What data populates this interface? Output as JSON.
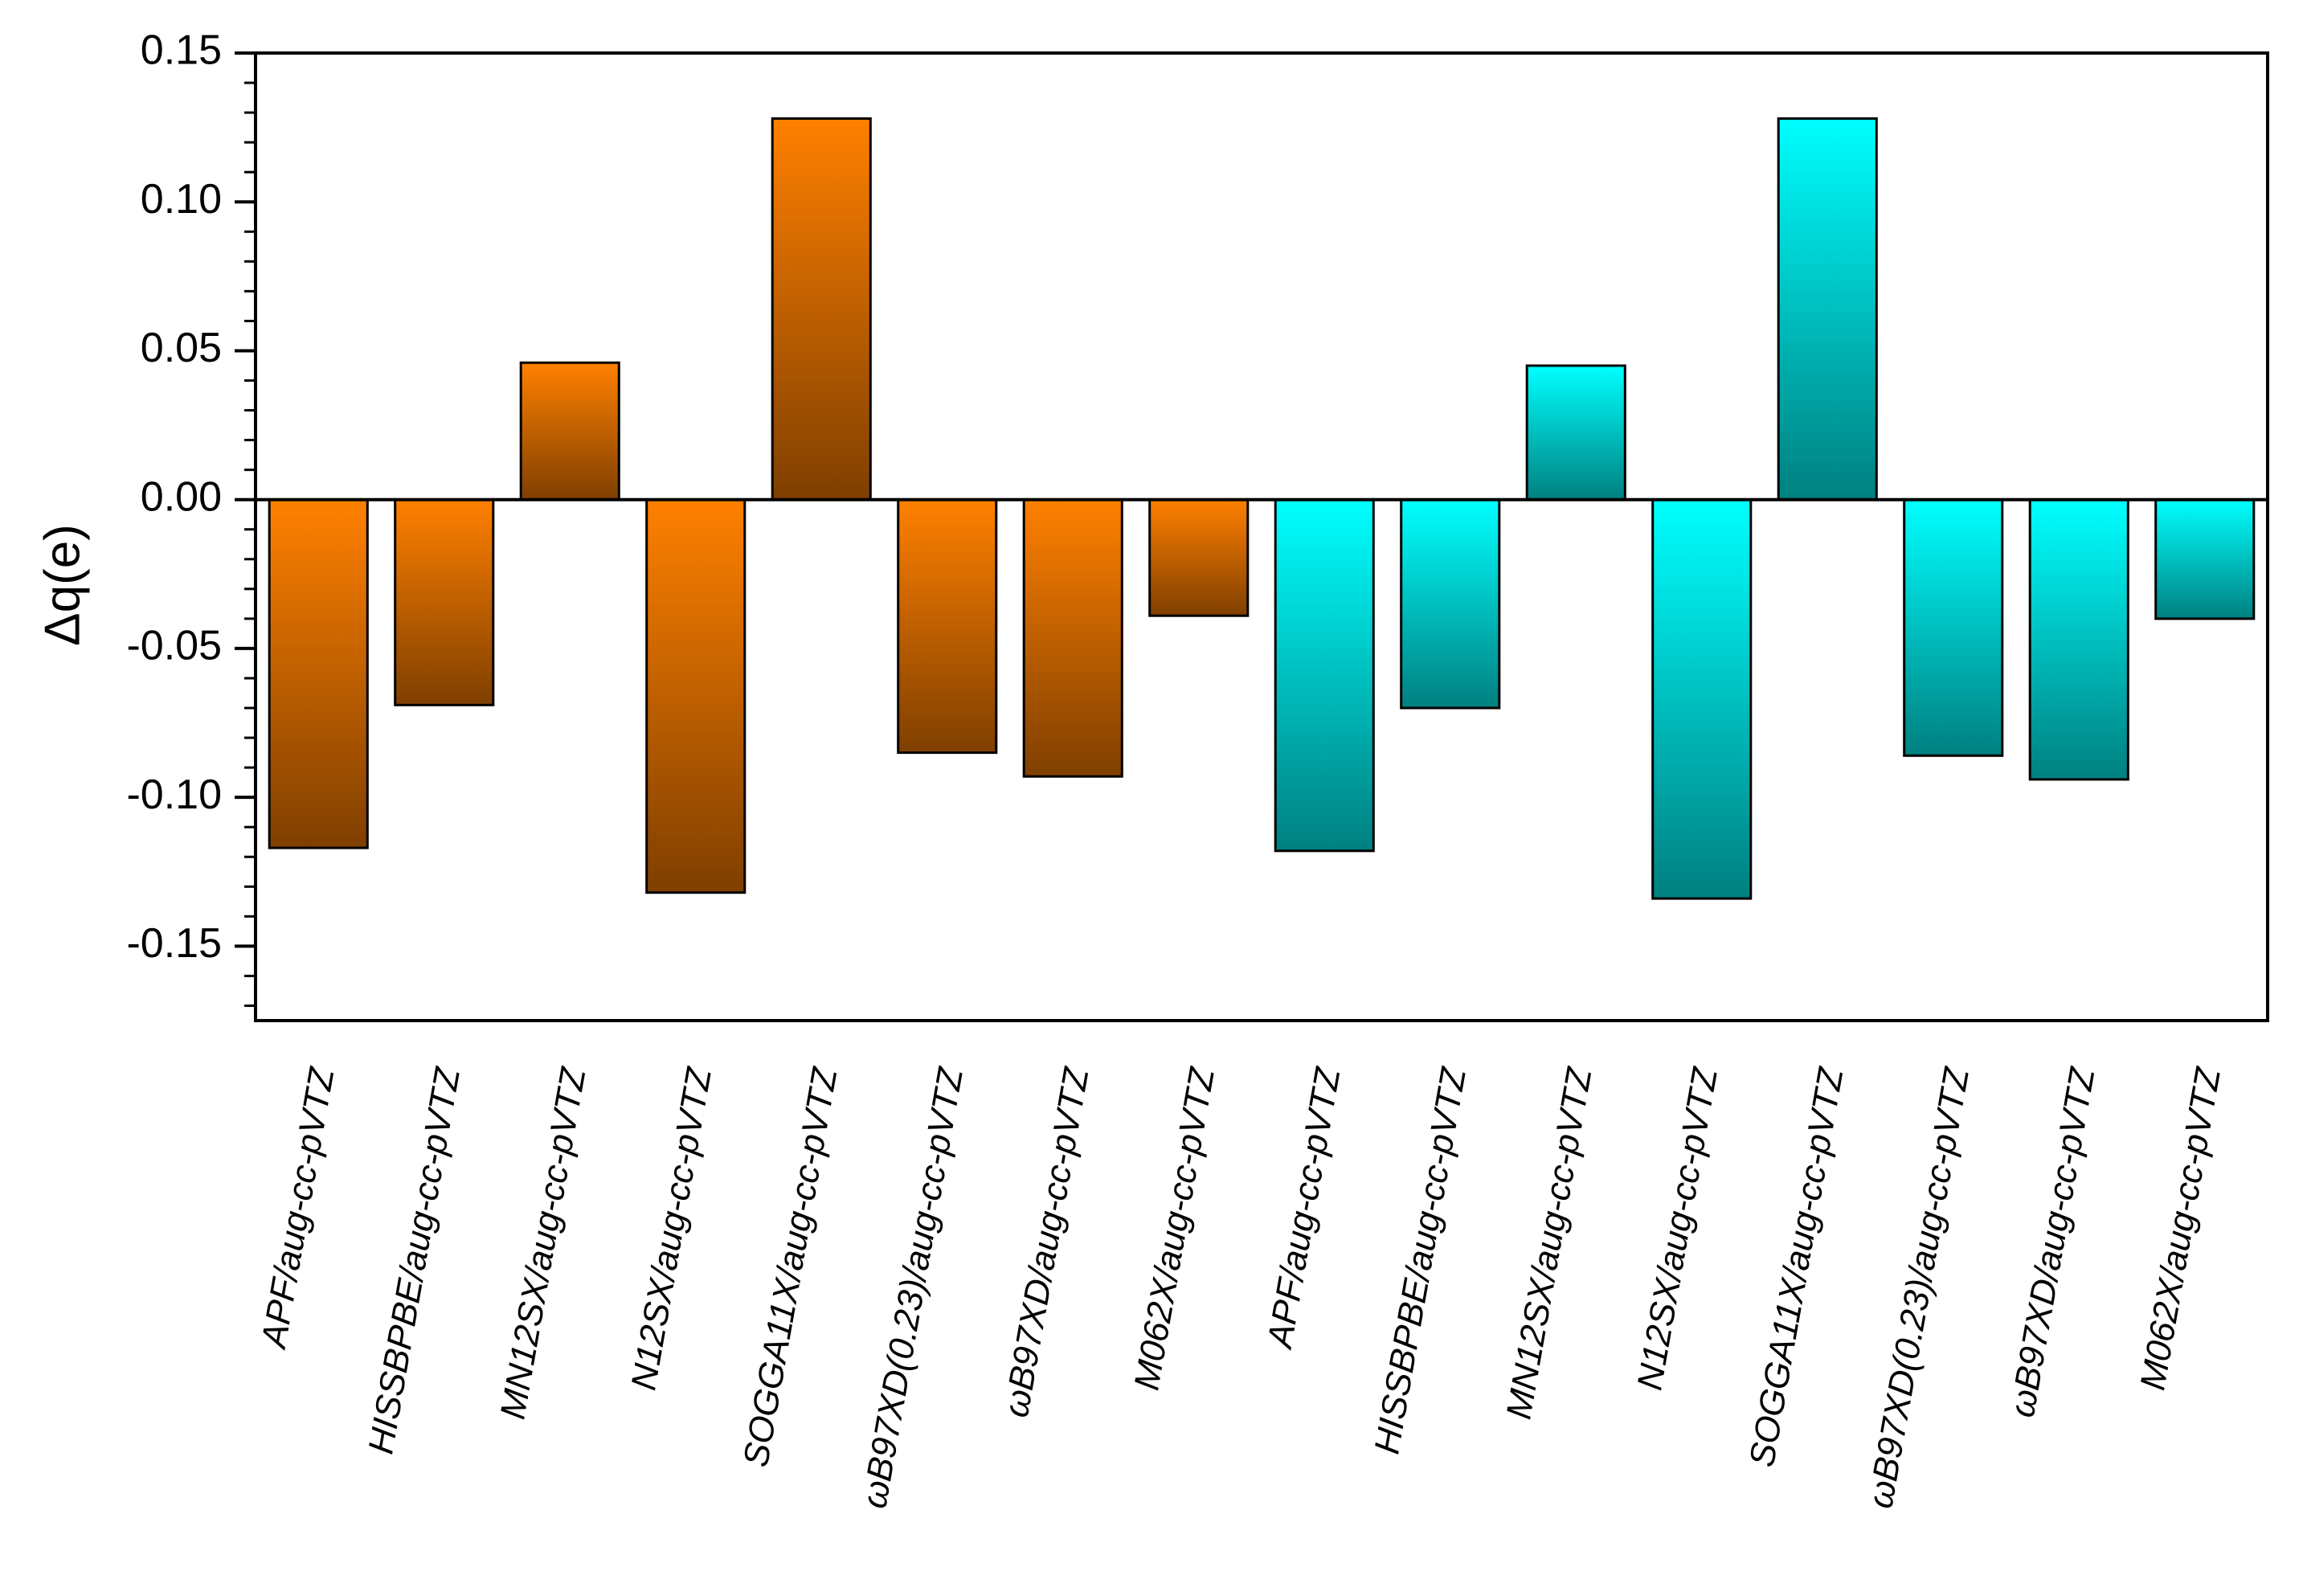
{
  "chart_data": {
    "type": "bar",
    "title": "",
    "xlabel": "",
    "ylabel": "Δq(e)",
    "ylim": [
      -0.175,
      0.15
    ],
    "yticks": [
      0.15,
      0.1,
      0.05,
      0.0,
      -0.05,
      -0.1,
      -0.15
    ],
    "ytick_labels": [
      "0.15",
      "0.10",
      "0.05",
      "0.00",
      "-0.05",
      "-0.10",
      "-0.15"
    ],
    "categories": [
      "APF/aug-cc-pVTZ",
      "HISSBPBE/aug-cc-pVTZ",
      "MN12SX/aug-cc-pVTZ",
      "N12SX/aug-cc-pVTZ",
      "SOGGA11X/aug-cc-pVTZ",
      "ωB97XD(0.23)/aug-cc-pVTZ",
      "ωB97XD/aug-cc-pVTZ",
      "M062X/aug-cc-pVTZ",
      "APF/aug-cc-pVTZ",
      "HISSBPBE/aug-cc-pVTZ",
      "MN12SX/aug-cc-pVTZ",
      "N12SX/aug-cc-pVTZ",
      "SOGGA11X/aug-cc-pVTZ",
      "ωB97XD(0.23)/aug-cc-pVTZ",
      "ωB97XD/aug-cc-pVTZ",
      "M062X/aug-cc-pVTZ"
    ],
    "values": [
      -0.117,
      -0.069,
      0.046,
      -0.132,
      0.128,
      -0.085,
      -0.093,
      -0.039,
      -0.118,
      -0.07,
      0.045,
      -0.134,
      0.128,
      -0.086,
      -0.094,
      -0.04
    ],
    "bar_groups": [
      0,
      0,
      0,
      0,
      0,
      0,
      0,
      0,
      1,
      1,
      1,
      1,
      1,
      1,
      1,
      1
    ],
    "series_colors": [
      {
        "light": "#ff8000",
        "dark": "#7f3f00"
      },
      {
        "light": "#00ffff",
        "dark": "#008080"
      }
    ],
    "grid": false,
    "legend": "none"
  }
}
